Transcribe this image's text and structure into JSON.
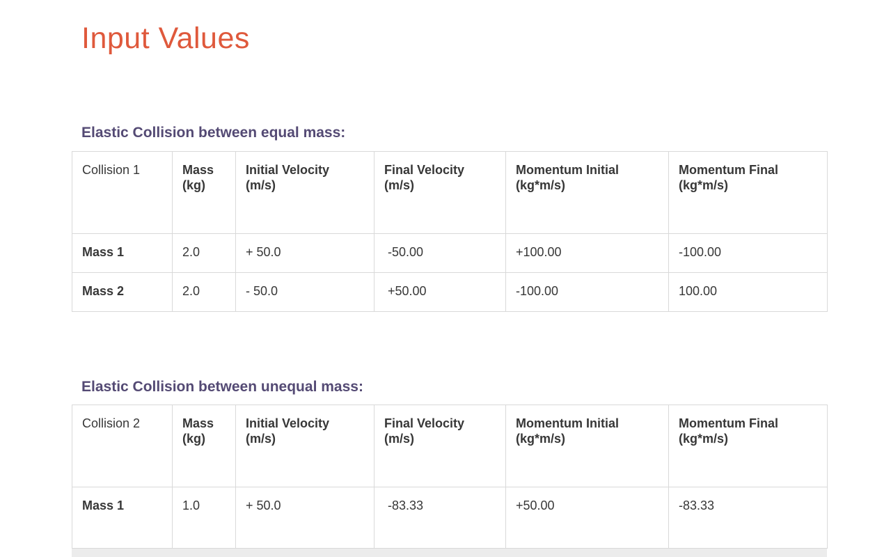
{
  "page": {
    "title": "Input Values"
  },
  "colors": {
    "title_accent": "#df593c",
    "heading_accent": "#544a74",
    "body_text": "#373737",
    "table_border": "#d9d9d9"
  },
  "sections": [
    {
      "heading": "Elastic Collision between equal mass:",
      "table": {
        "columns": [
          "Collision 1",
          "Mass\n(kg)",
          "Initial Velocity\n(m/s)",
          "Final Velocity\n(m/s)",
          "Momentum Initial\n(kg*m/s)",
          "Momentum Final\n(kg*m/s)"
        ],
        "rows": [
          {
            "cells": [
              "Mass 1",
              "2.0",
              "+ 50.0",
              " -50.00",
              "+100.00",
              "-100.00"
            ]
          },
          {
            "cells": [
              "Mass 2",
              "2.0",
              "- 50.0",
              " +50.00",
              "-100.00",
              "100.00"
            ]
          }
        ]
      }
    },
    {
      "heading": "Elastic Collision between unequal mass:",
      "table": {
        "columns": [
          "Collision 2",
          "Mass\n(kg)",
          "Initial Velocity\n(m/s)",
          "Final Velocity\n(m/s)",
          "Momentum Initial\n(kg*m/s)",
          "Momentum Final\n(kg*m/s)"
        ],
        "rows": [
          {
            "cells": [
              "Mass 1",
              "1.0",
              "+ 50.0",
              " -83.33",
              "+50.00",
              "-83.33"
            ]
          }
        ]
      }
    }
  ]
}
